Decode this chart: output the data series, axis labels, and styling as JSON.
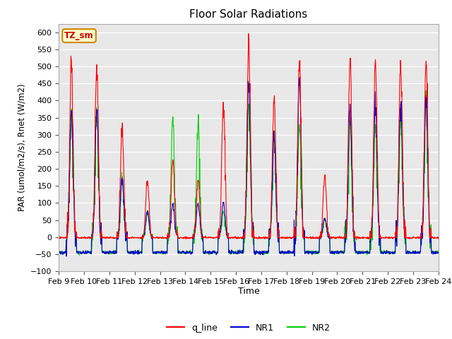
{
  "title": "Floor Solar Radiations",
  "xlabel": "Time",
  "ylabel": "PAR (umol/m2/s), Rnet (W/m2)",
  "ylim": [
    -100,
    625
  ],
  "yticks": [
    -100,
    -50,
    0,
    50,
    100,
    150,
    200,
    250,
    300,
    350,
    400,
    450,
    500,
    550,
    600
  ],
  "xtick_labels": [
    "Feb 9",
    "Feb 10",
    "Feb 11",
    "Feb 12",
    "Feb 13",
    "Feb 14",
    "Feb 15",
    "Feb 16",
    "Feb 17",
    "Feb 18",
    "Feb 19",
    "Feb 20",
    "Feb 21",
    "Feb 22",
    "Feb 23",
    "Feb 24"
  ],
  "legend_labels": [
    "q_line",
    "NR1",
    "NR2"
  ],
  "line_colors": {
    "q_line": "#ff0000",
    "NR1": "#0000cc",
    "NR2": "#00cc00"
  },
  "annotation_text": "TZ_sm",
  "annotation_bg": "#ffffcc",
  "annotation_border": "#cc8800",
  "plot_bg": "#e8e8e8",
  "grid_color": "#ffffff",
  "fig_bg": "#ffffff",
  "n_days": 15,
  "steps_per_day": 96,
  "day_peaks_q": [
    515,
    505,
    320,
    165,
    225,
    165,
    395,
    565,
    405,
    515,
    180,
    520,
    520,
    505,
    515
  ],
  "day_peaks_nr1": [
    370,
    370,
    170,
    75,
    95,
    100,
    100,
    450,
    295,
    465,
    55,
    390,
    395,
    390,
    395
  ],
  "day_peaks_nr2": [
    375,
    370,
    175,
    75,
    350,
    340,
    75,
    390,
    295,
    330,
    55,
    330,
    330,
    340,
    395
  ],
  "night_q": -2,
  "night_nr1": -45,
  "night_nr2": -45
}
